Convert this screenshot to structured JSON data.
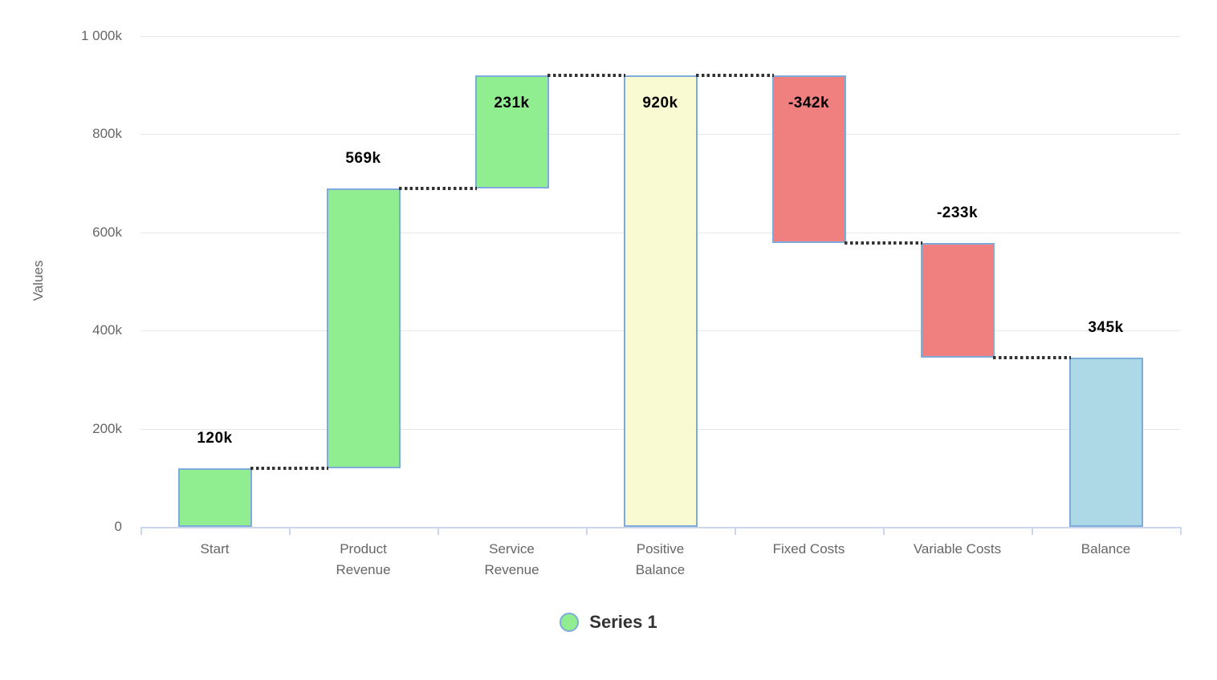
{
  "chart_data": {
    "type": "waterfall",
    "title": "",
    "ylabel": "Values",
    "xlabel": "",
    "categories": [
      "Start",
      "Product Revenue",
      "Service Revenue",
      "Positive Balance",
      "Fixed Costs",
      "Variable Costs",
      "Balance"
    ],
    "categories_display": [
      [
        "Start"
      ],
      [
        "Product",
        "Revenue"
      ],
      [
        "Service",
        "Revenue"
      ],
      [
        "Positive",
        "Balance"
      ],
      [
        "Fixed Costs"
      ],
      [
        "Variable Costs"
      ],
      [
        "Balance"
      ]
    ],
    "series": [
      {
        "name": "Series 1",
        "points": [
          {
            "name": "Start",
            "value": 120000,
            "start": 0,
            "end": 120000,
            "label": "120k",
            "role": "positive",
            "label_position": "above"
          },
          {
            "name": "Product Revenue",
            "value": 569000,
            "start": 120000,
            "end": 689000,
            "label": "569k",
            "role": "positive",
            "label_position": "above"
          },
          {
            "name": "Service Revenue",
            "value": 231000,
            "start": 689000,
            "end": 920000,
            "label": "231k",
            "role": "positive",
            "label_position": "inside"
          },
          {
            "name": "Positive Balance",
            "value": 920000,
            "start": 0,
            "end": 920000,
            "label": "920k",
            "role": "intermediate-sum",
            "label_position": "inside"
          },
          {
            "name": "Fixed Costs",
            "value": -342000,
            "start": 920000,
            "end": 578000,
            "label": "-342k",
            "role": "negative",
            "label_position": "inside"
          },
          {
            "name": "Variable Costs",
            "value": -233000,
            "start": 578000,
            "end": 345000,
            "label": "-233k",
            "role": "negative",
            "label_position": "above"
          },
          {
            "name": "Balance",
            "value": 345000,
            "start": 0,
            "end": 345000,
            "label": "345k",
            "role": "sum",
            "label_position": "above"
          }
        ]
      }
    ],
    "y_axis": {
      "min": 0,
      "max": 1000000,
      "ticks": [
        0,
        200000,
        400000,
        600000,
        800000,
        1000000
      ],
      "tick_labels": [
        "0",
        "200k",
        "400k",
        "600k",
        "800k",
        "1 000k"
      ],
      "grid": true
    },
    "legend": {
      "position": "bottom",
      "items": [
        {
          "label": "Series 1",
          "marker_color": "#90ee90",
          "marker_border": "#7cabdc"
        }
      ]
    },
    "colors": {
      "positive": "#90ee90",
      "negative": "#f08080",
      "intermediate-sum": "#fafad2",
      "sum": "#add8e6",
      "bar_border": "#7cabdc",
      "connector": "#333333",
      "grid": "#e6e6e6",
      "axis_line": "#ccd6eb",
      "tick_text": "#666666",
      "data_label_text": "#000000",
      "legend_text": "#333333"
    }
  }
}
